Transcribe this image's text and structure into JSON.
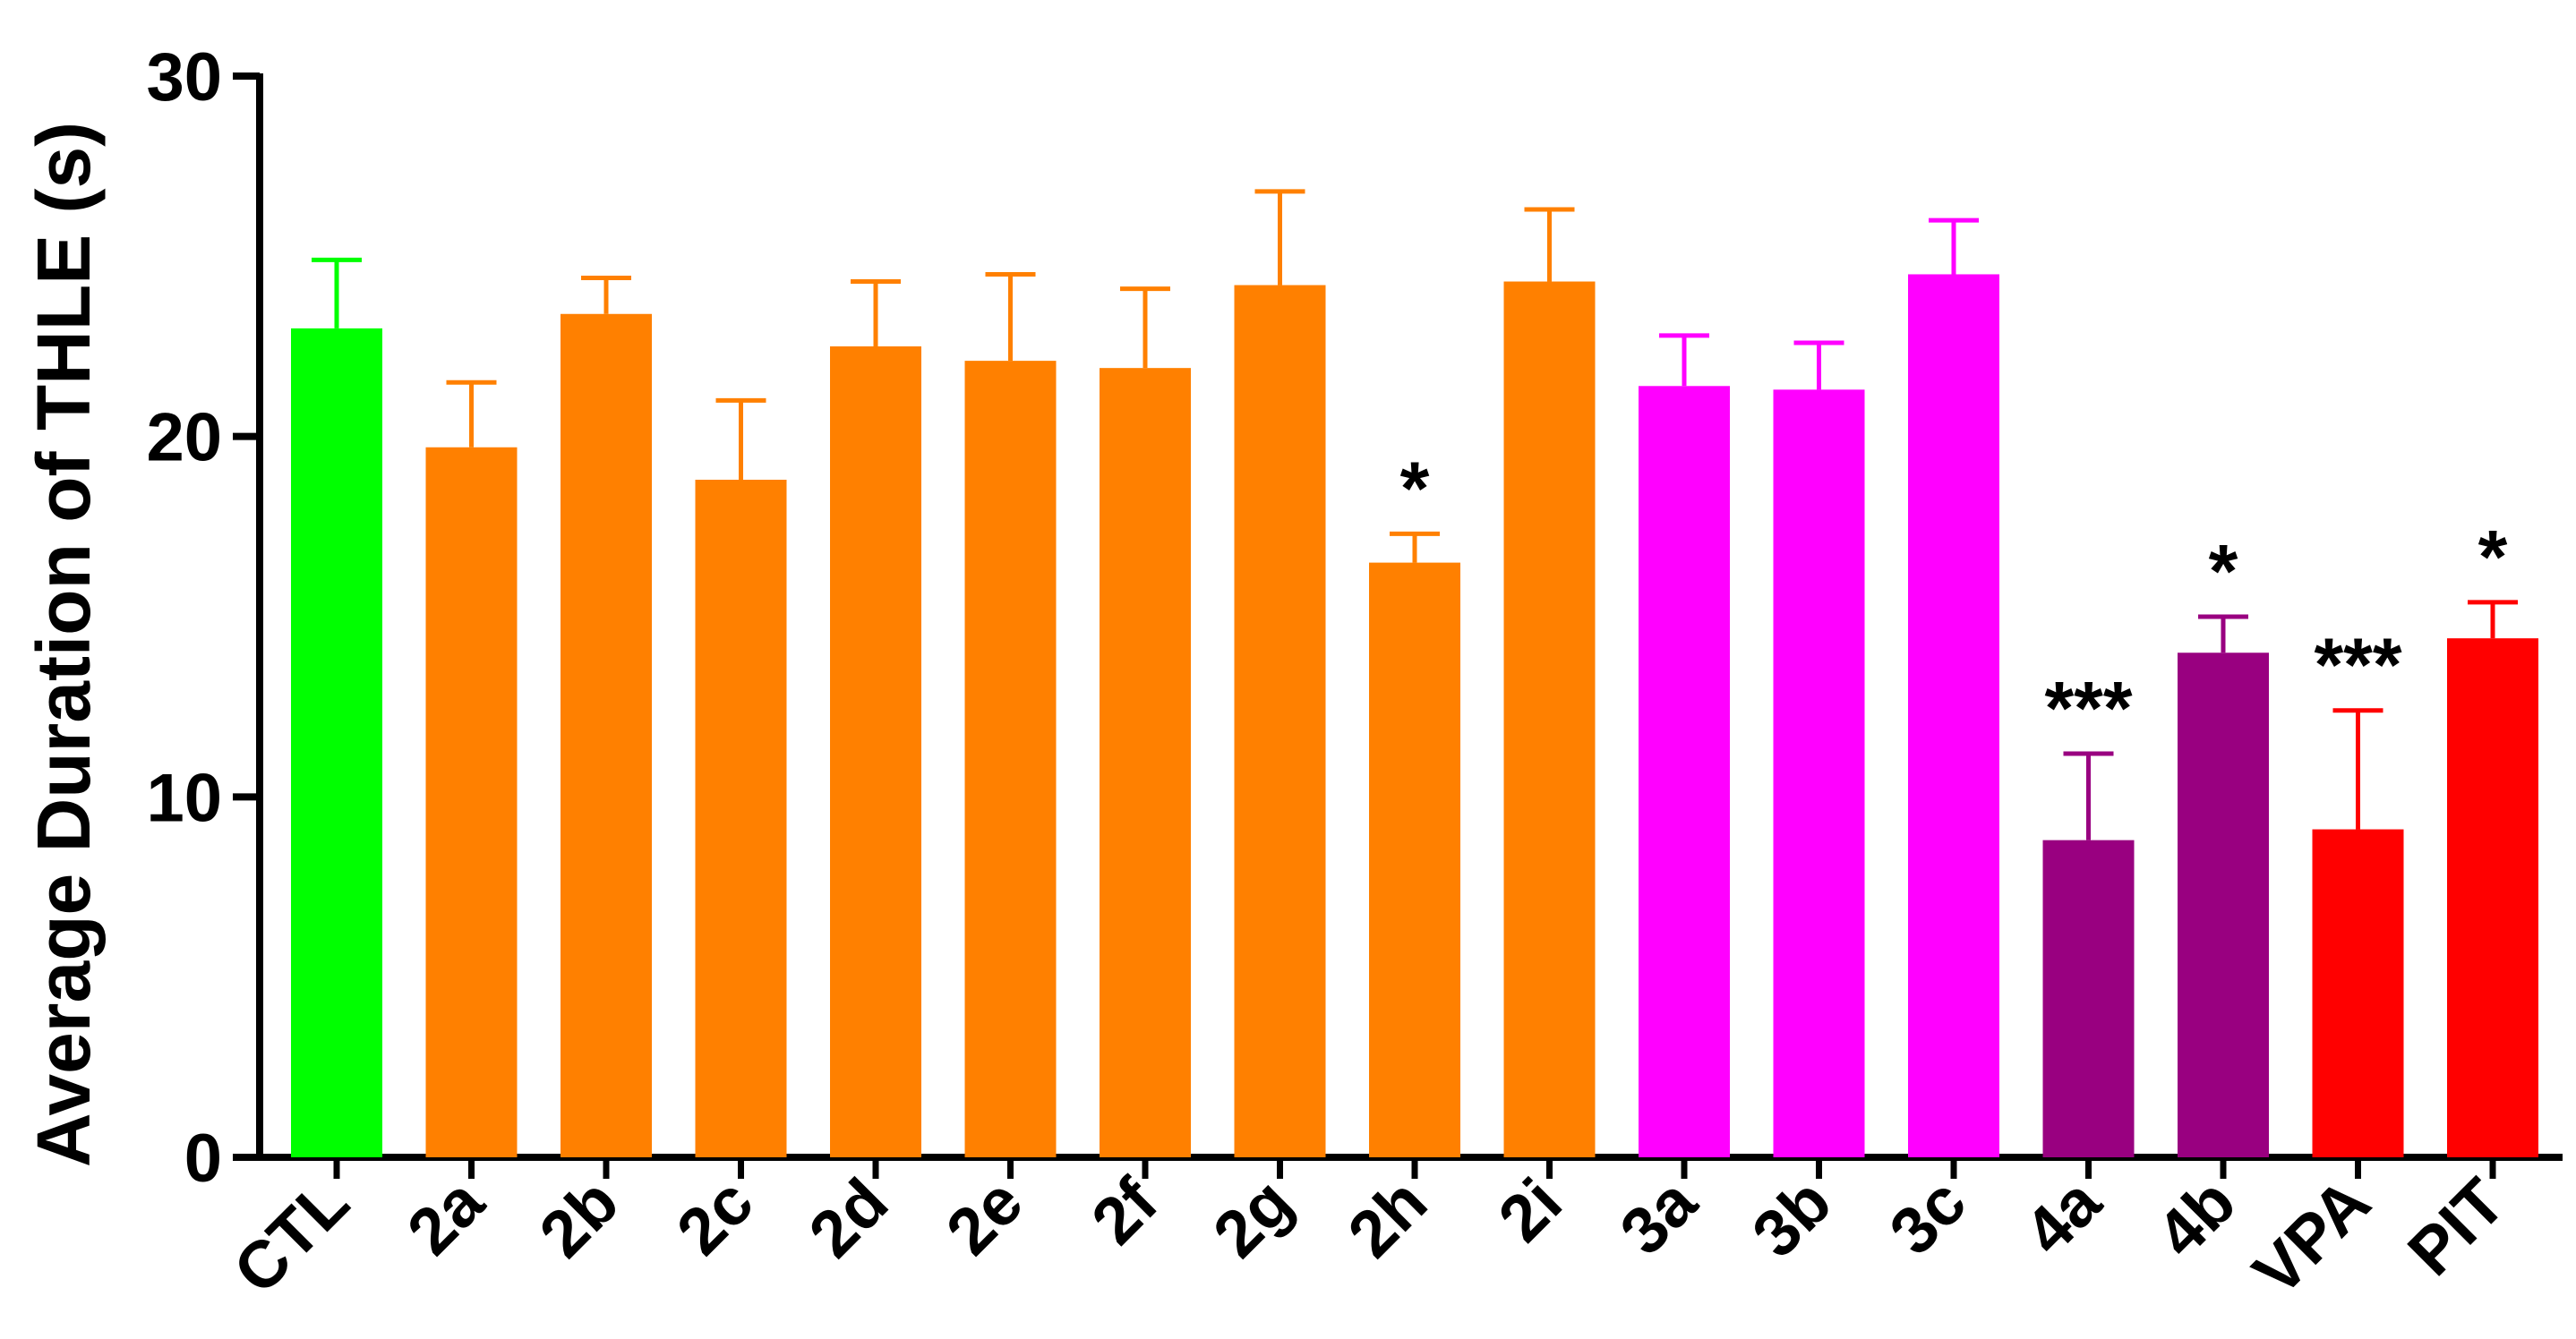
{
  "chart_data": {
    "type": "bar",
    "title": "",
    "xlabel": "",
    "ylabel": "Average Duration of THLE (s)",
    "ylim": [
      0,
      30
    ],
    "yticks": [
      0,
      10,
      20,
      30
    ],
    "grid": false,
    "error_bars": "upper",
    "categories": [
      "CTL",
      "2a",
      "2b",
      "2c",
      "2d",
      "2e",
      "2f",
      "2g",
      "2h",
      "2i",
      "3a",
      "3b",
      "3c",
      "4a",
      "4b",
      "VPA",
      "PIT"
    ],
    "values": [
      23.0,
      19.7,
      23.4,
      18.8,
      22.5,
      22.1,
      21.9,
      24.2,
      16.5,
      24.3,
      21.4,
      21.3,
      24.5,
      8.8,
      14.0,
      9.1,
      14.4
    ],
    "errors": [
      1.9,
      1.8,
      1.0,
      2.2,
      1.8,
      2.4,
      2.2,
      2.6,
      0.8,
      2.0,
      1.4,
      1.3,
      1.5,
      2.4,
      1.0,
      3.3,
      1.0
    ],
    "significance": [
      "",
      "",
      "",
      "",
      "",
      "",
      "",
      "",
      "*",
      "",
      "",
      "",
      "",
      "***",
      "*",
      "***",
      "*"
    ],
    "colors": [
      "#00ff00",
      "#ff8000",
      "#ff8000",
      "#ff8000",
      "#ff8000",
      "#ff8000",
      "#ff8000",
      "#ff8000",
      "#ff8000",
      "#ff8000",
      "#ff00ff",
      "#ff00ff",
      "#ff00ff",
      "#990080",
      "#990080",
      "#ff0000",
      "#ff0000"
    ]
  }
}
